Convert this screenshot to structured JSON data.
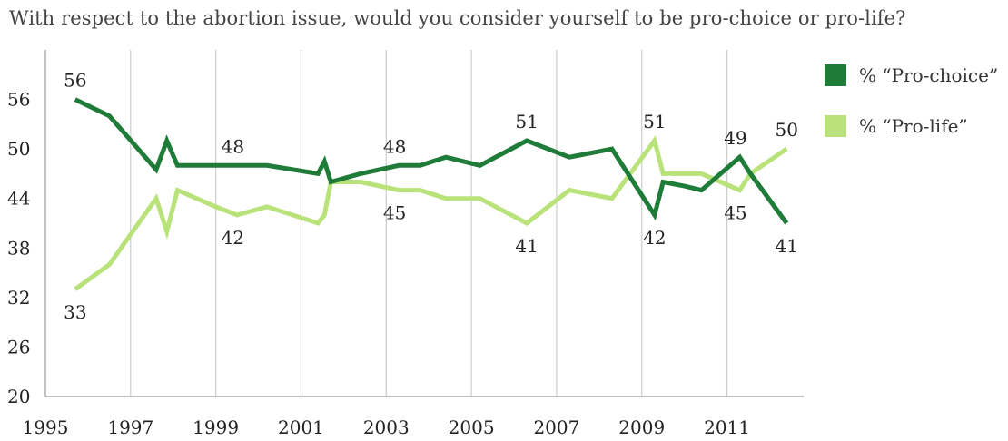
{
  "title": "With respect to the abortion issue, would you consider yourself to be pro-choice or pro-life?",
  "colors": {
    "pro_choice": "#1e7b38",
    "pro_life": "#b9e27a",
    "grid": "#cccccc",
    "axis": "#999999"
  },
  "legend": [
    {
      "label": "% “Pro-choice”",
      "color": "#1e7b38"
    },
    {
      "label": "% “Pro-life”",
      "color": "#b9e27a"
    }
  ],
  "chart_data": {
    "type": "line",
    "title": "With respect to the abortion issue, would you consider yourself to be pro-choice or pro-life?",
    "xlabel": "",
    "ylabel": "",
    "xlim": [
      1995,
      2012.8
    ],
    "ylim": [
      20,
      62
    ],
    "yticks": [
      20,
      26,
      32,
      38,
      44,
      50,
      56
    ],
    "xticks": [
      1995,
      1997,
      1999,
      2001,
      2003,
      2005,
      2007,
      2009,
      2011
    ],
    "grid": {
      "vertical": true,
      "horizontal": false
    },
    "legend_position": "right",
    "series": [
      {
        "name": "% “Pro-choice”",
        "color": "#1e7b38",
        "points": [
          [
            1995.7,
            56
          ],
          [
            1996.5,
            54
          ],
          [
            1997.6,
            47.5
          ],
          [
            1997.85,
            51
          ],
          [
            1998.1,
            48
          ],
          [
            1999.0,
            48
          ],
          [
            1999.5,
            48
          ],
          [
            2000.2,
            48
          ],
          [
            2001.4,
            47
          ],
          [
            2001.55,
            48.5
          ],
          [
            2001.7,
            46
          ],
          [
            2002.4,
            47
          ],
          [
            2003.3,
            48
          ],
          [
            2003.8,
            48
          ],
          [
            2004.4,
            49
          ],
          [
            2005.2,
            48
          ],
          [
            2006.3,
            51
          ],
          [
            2007.3,
            49
          ],
          [
            2008.3,
            50
          ],
          [
            2009.3,
            42
          ],
          [
            2009.5,
            46
          ],
          [
            2010.0,
            45.5
          ],
          [
            2010.4,
            45
          ],
          [
            2011.3,
            49
          ],
          [
            2011.55,
            47
          ],
          [
            2012.4,
            41
          ]
        ]
      },
      {
        "name": "% “Pro-life”",
        "color": "#b9e27a",
        "points": [
          [
            1995.7,
            33
          ],
          [
            1996.5,
            36
          ],
          [
            1997.6,
            44
          ],
          [
            1997.85,
            40
          ],
          [
            1998.1,
            45
          ],
          [
            1999.0,
            43
          ],
          [
            1999.5,
            42
          ],
          [
            2000.2,
            43
          ],
          [
            2001.4,
            41
          ],
          [
            2001.55,
            42
          ],
          [
            2001.7,
            46
          ],
          [
            2002.4,
            46
          ],
          [
            2003.3,
            45
          ],
          [
            2003.8,
            45
          ],
          [
            2004.4,
            44
          ],
          [
            2005.2,
            44
          ],
          [
            2006.3,
            41
          ],
          [
            2007.3,
            45
          ],
          [
            2008.3,
            44
          ],
          [
            2009.3,
            51
          ],
          [
            2009.5,
            47
          ],
          [
            2010.0,
            47
          ],
          [
            2010.4,
            47
          ],
          [
            2011.3,
            45
          ],
          [
            2011.55,
            47
          ],
          [
            2012.4,
            50
          ]
        ]
      }
    ],
    "annotations": [
      {
        "text": "56",
        "x": 1995.7,
        "y": 56,
        "place": "above"
      },
      {
        "text": "33",
        "x": 1995.7,
        "y": 33,
        "place": "below"
      },
      {
        "text": "48",
        "x": 1999.4,
        "y": 48,
        "place": "above"
      },
      {
        "text": "42",
        "x": 1999.4,
        "y": 42,
        "place": "below"
      },
      {
        "text": "48",
        "x": 2003.2,
        "y": 48,
        "place": "above"
      },
      {
        "text": "45",
        "x": 2003.2,
        "y": 45,
        "place": "below"
      },
      {
        "text": "51",
        "x": 2006.3,
        "y": 51,
        "place": "above"
      },
      {
        "text": "41",
        "x": 2006.3,
        "y": 41,
        "place": "below"
      },
      {
        "text": "51",
        "x": 2009.3,
        "y": 51,
        "place": "above"
      },
      {
        "text": "42",
        "x": 2009.3,
        "y": 42,
        "place": "below"
      },
      {
        "text": "49",
        "x": 2011.2,
        "y": 49,
        "place": "above"
      },
      {
        "text": "45",
        "x": 2011.2,
        "y": 45,
        "place": "below"
      },
      {
        "text": "50",
        "x": 2012.4,
        "y": 50,
        "place": "above"
      },
      {
        "text": "41",
        "x": 2012.4,
        "y": 41,
        "place": "below"
      }
    ]
  }
}
